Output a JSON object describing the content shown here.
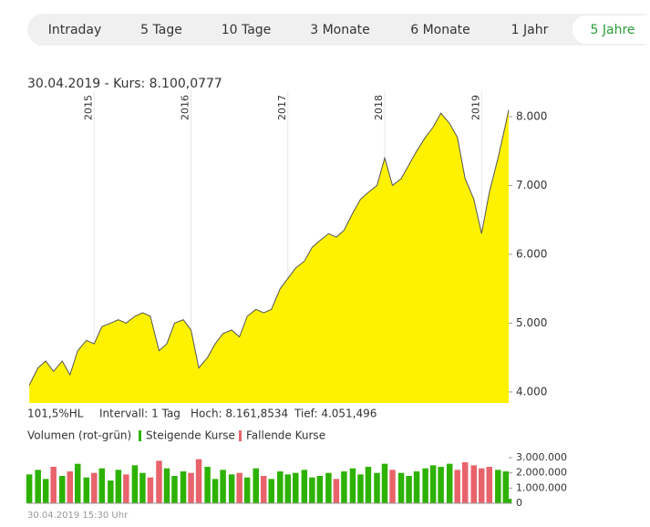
{
  "tabs": [
    "Intraday",
    "5 Tage",
    "10 Tage",
    "3 Monate",
    "6 Monate",
    "1 Jahr",
    "5 Jahre"
  ],
  "selected_tab": 6,
  "header": "30.04.2019  - Kurs: 8.100,0777",
  "info": [
    "101,5%HL",
    "Intervall: 1 Tag",
    "Hoch: 8.161,8534",
    "Tief: 4.051,496"
  ],
  "footer": "30.04.2019 15:30 Uhr",
  "chart_data": [
    {
      "type": "area",
      "color": "#fff200",
      "line_color": "#555555",
      "x": [
        2014.33,
        2014.42,
        2014.5,
        2014.58,
        2014.67,
        2014.75,
        2014.83,
        2014.92,
        2015.0,
        2015.08,
        2015.17,
        2015.25,
        2015.33,
        2015.42,
        2015.5,
        2015.58,
        2015.67,
        2015.75,
        2015.83,
        2015.92,
        2016.0,
        2016.08,
        2016.17,
        2016.25,
        2016.33,
        2016.42,
        2016.5,
        2016.58,
        2016.67,
        2016.75,
        2016.83,
        2016.92,
        2017.0,
        2017.08,
        2017.17,
        2017.25,
        2017.33,
        2017.42,
        2017.5,
        2017.58,
        2017.67,
        2017.75,
        2017.83,
        2017.92,
        2018.0,
        2018.08,
        2018.17,
        2018.25,
        2018.33,
        2018.42,
        2018.5,
        2018.58,
        2018.67,
        2018.75,
        2018.83,
        2018.92,
        2019.0,
        2019.08,
        2019.17,
        2019.25,
        2019.28
      ],
      "values": [
        4100,
        4350,
        4450,
        4300,
        4450,
        4250,
        4600,
        4750,
        4700,
        4950,
        5000,
        5050,
        5000,
        5100,
        5150,
        5100,
        4600,
        4700,
        5000,
        5050,
        4900,
        4350,
        4500,
        4700,
        4850,
        4900,
        4800,
        5100,
        5200,
        5150,
        5200,
        5500,
        5650,
        5800,
        5900,
        6100,
        6200,
        6300,
        6250,
        6350,
        6600,
        6800,
        6900,
        7000,
        7400,
        7000,
        7100,
        7300,
        7500,
        7700,
        7850,
        8050,
        7900,
        7700,
        7100,
        6800,
        6300,
        6900,
        7400,
        7900,
        8100
      ],
      "xlim": [
        2014.31,
        2019.28
      ],
      "xticks": [
        2015,
        2016,
        2017,
        2018,
        2019
      ],
      "ylim": [
        3840,
        8370
      ],
      "yticks": [
        {
          "value": 4000,
          "label": "4.000"
        },
        {
          "value": 5000,
          "label": "5.000"
        },
        {
          "value": 6000,
          "label": "6.000"
        },
        {
          "value": 7000,
          "label": "7.000"
        },
        {
          "value": 8000,
          "label": "8.000"
        }
      ],
      "grid": true
    },
    {
      "type": "bar",
      "title": "Volumen (rot-grün)",
      "x": [
        2014.33,
        2014.42,
        2014.5,
        2014.58,
        2014.67,
        2014.75,
        2014.83,
        2014.92,
        2015.0,
        2015.08,
        2015.17,
        2015.25,
        2015.33,
        2015.42,
        2015.5,
        2015.58,
        2015.67,
        2015.75,
        2015.83,
        2015.92,
        2016.0,
        2016.08,
        2016.17,
        2016.25,
        2016.33,
        2016.42,
        2016.5,
        2016.58,
        2016.67,
        2016.75,
        2016.83,
        2016.92,
        2017.0,
        2017.08,
        2017.17,
        2017.25,
        2017.33,
        2017.42,
        2017.5,
        2017.58,
        2017.67,
        2017.75,
        2017.83,
        2017.92,
        2018.0,
        2018.08,
        2018.17,
        2018.25,
        2018.33,
        2018.42,
        2018.5,
        2018.58,
        2018.67,
        2018.75,
        2018.83,
        2018.92,
        2019.0,
        2019.08,
        2019.17,
        2019.25,
        2019.28
      ],
      "series": [
        {
          "name": "Steigende Kurse",
          "color": "#2db200",
          "values": [
            1900000,
            2200000,
            1600000,
            null,
            1800000,
            null,
            2600000,
            1700000,
            null,
            2300000,
            1500000,
            2200000,
            null,
            2500000,
            2000000,
            null,
            null,
            2300000,
            1800000,
            2100000,
            null,
            null,
            2400000,
            1600000,
            2200000,
            1900000,
            null,
            1700000,
            2300000,
            null,
            1600000,
            2100000,
            1900000,
            2000000,
            2200000,
            1700000,
            1800000,
            2000000,
            null,
            2100000,
            2300000,
            1900000,
            2400000,
            2000000,
            2600000,
            null,
            2000000,
            1800000,
            2100000,
            2300000,
            2500000,
            2400000,
            2600000,
            null,
            null,
            null,
            null,
            null,
            2200000,
            2100000,
            300000
          ]
        },
        {
          "name": "Fallende Kurse",
          "color": "#e8636b",
          "values": [
            null,
            null,
            null,
            2400000,
            null,
            2100000,
            null,
            null,
            2000000,
            null,
            null,
            null,
            1900000,
            null,
            null,
            1700000,
            2800000,
            null,
            null,
            null,
            2000000,
            2900000,
            null,
            null,
            null,
            null,
            2000000,
            null,
            null,
            1800000,
            null,
            null,
            null,
            null,
            null,
            null,
            null,
            null,
            1600000,
            null,
            null,
            null,
            null,
            null,
            null,
            2200000,
            null,
            null,
            null,
            null,
            null,
            null,
            null,
            2200000,
            2700000,
            2500000,
            2300000,
            2400000,
            null,
            null,
            null
          ]
        }
      ],
      "xlim": [
        2014.31,
        2019.28
      ],
      "ylim": [
        0,
        3720000
      ],
      "yticks": [
        0,
        {
          "value": 1000000,
          "label": "1.000.000"
        },
        {
          "value": 2000000,
          "label": "2.000.000"
        },
        {
          "value": 3000000,
          "label": "3.000.000"
        }
      ]
    }
  ]
}
